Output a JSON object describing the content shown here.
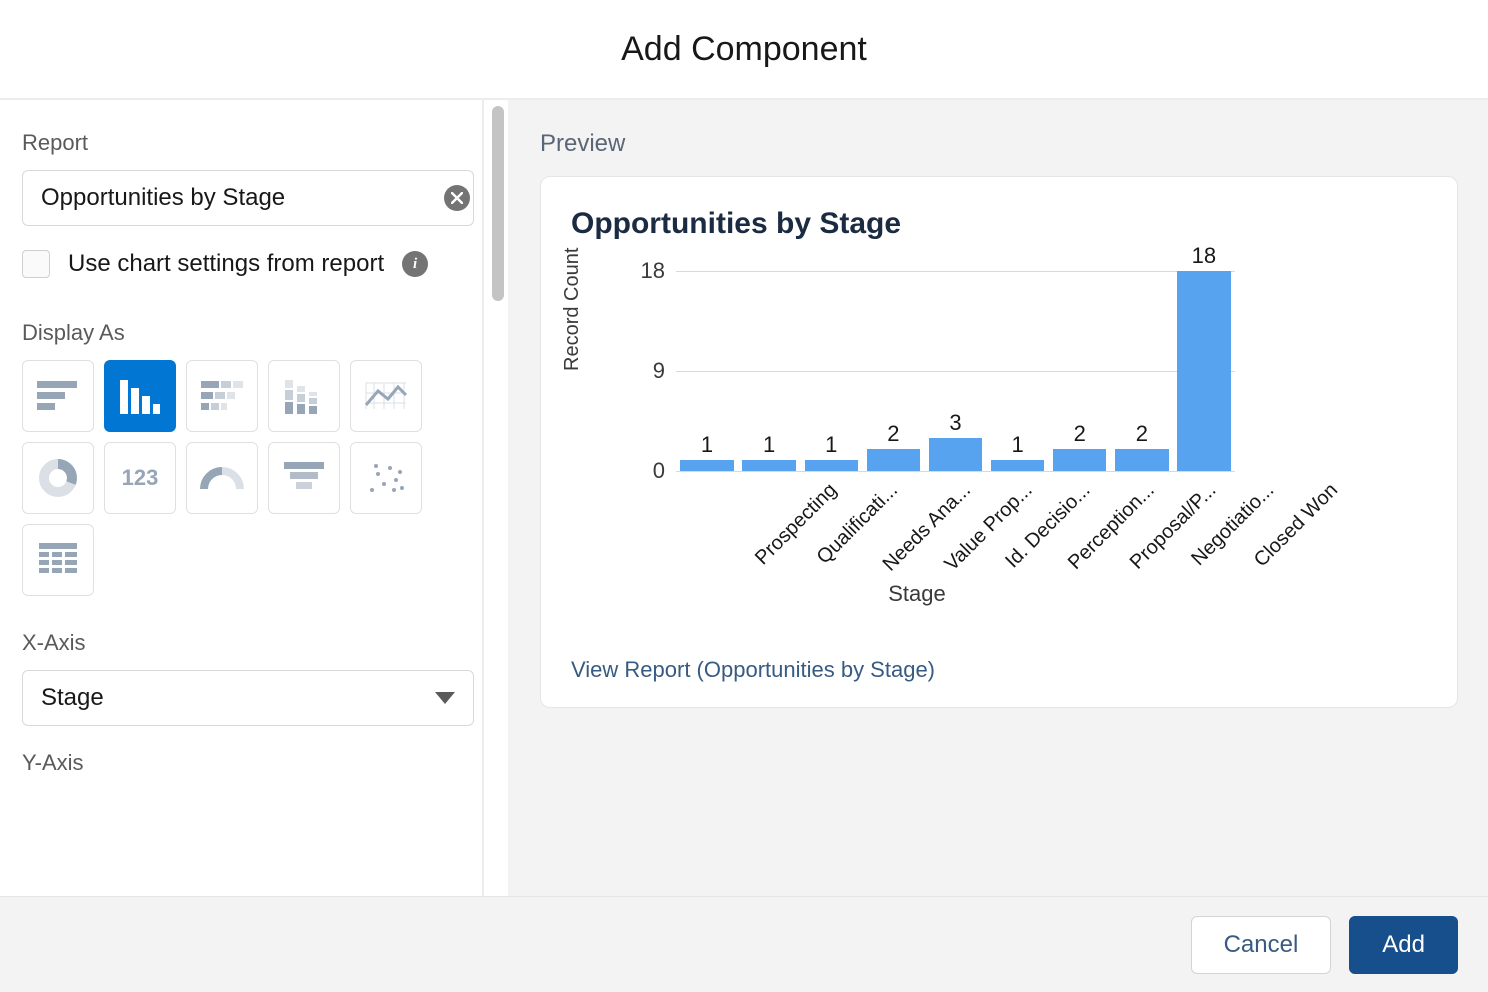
{
  "header": {
    "title": "Add Component"
  },
  "leftPanel": {
    "reportLabel": "Report",
    "reportValue": "Opportunities by Stage",
    "useChartSettingsLabel": "Use chart settings from report",
    "useChartSettingsChecked": false,
    "displayAsLabel": "Display As",
    "chartTypes": [
      {
        "id": "hbar",
        "selected": false
      },
      {
        "id": "vbar",
        "selected": true
      },
      {
        "id": "stackedh",
        "selected": false
      },
      {
        "id": "stackedv",
        "selected": false
      },
      {
        "id": "line",
        "selected": false
      },
      {
        "id": "donut",
        "selected": false
      },
      {
        "id": "metric",
        "selected": false
      },
      {
        "id": "gauge",
        "selected": false
      },
      {
        "id": "funnel",
        "selected": false
      },
      {
        "id": "scatter",
        "selected": false
      },
      {
        "id": "table",
        "selected": false
      }
    ],
    "xAxisLabel": "X-Axis",
    "xAxisValue": "Stage",
    "yAxisLabel": "Y-Axis"
  },
  "preview": {
    "label": "Preview",
    "cardTitle": "Opportunities by Stage",
    "chart": {
      "type": "bar",
      "yAxisTitle": "Record Count",
      "xAxisTitle": "Stage",
      "yTicks": [
        0,
        9,
        18
      ],
      "yMax": 18,
      "barColor": "#57a3ef",
      "gridColor": "#d9d9d9",
      "background": "#ffffff",
      "xLabelFontSize": 20,
      "valueFontSize": 22,
      "categories": [
        "Prospecting",
        "Qualificati...",
        "Needs Ana...",
        "Value Prop...",
        "Id. Decisio...",
        "Perception...",
        "Proposal/P...",
        "Negotiatio...",
        "Closed Won"
      ],
      "values": [
        1,
        1,
        1,
        2,
        3,
        1,
        2,
        2,
        18
      ]
    },
    "viewReportText": "View Report (Opportunities by Stage)"
  },
  "footer": {
    "cancelLabel": "Cancel",
    "addLabel": "Add"
  },
  "metricLabel": "123"
}
